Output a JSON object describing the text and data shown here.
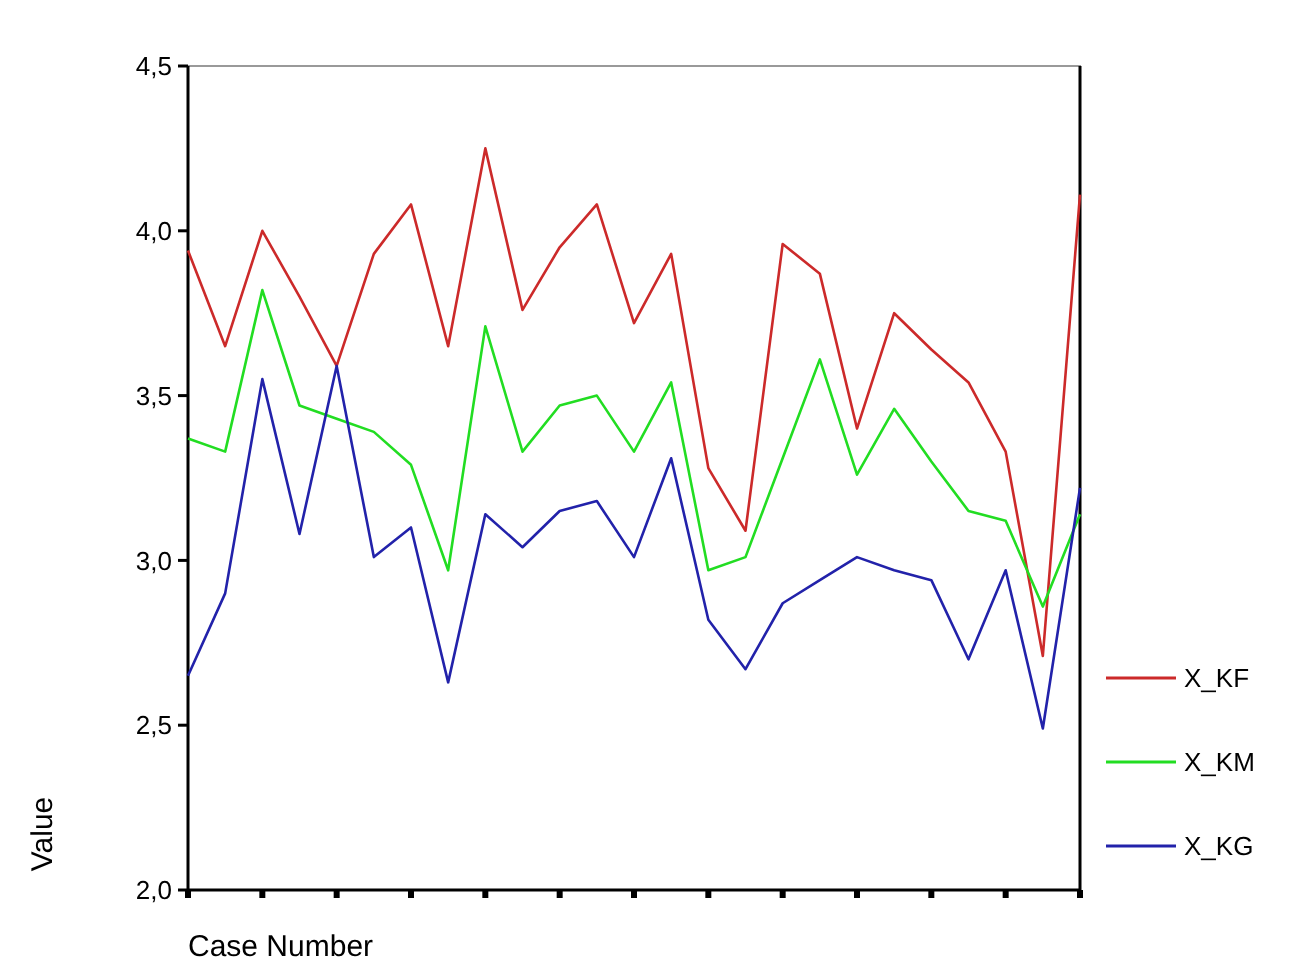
{
  "chart_data": {
    "type": "line",
    "xlabel": "Case Number",
    "ylabel": "Value",
    "categories": [
      null,
      null,
      null,
      null,
      null,
      null,
      null,
      null,
      null,
      null,
      null,
      null,
      null,
      null,
      null,
      null,
      null,
      null,
      null,
      null,
      null,
      null,
      null,
      null,
      null
    ],
    "ylim": [
      2,
      4.5
    ],
    "yticks": [
      {
        "value": 2,
        "label": "2,0"
      },
      {
        "value": 2.5,
        "label": "2,5"
      },
      {
        "value": 3,
        "label": "3,0"
      },
      {
        "value": 3.5,
        "label": "3,5"
      },
      {
        "value": 4,
        "label": "4,0"
      },
      {
        "value": 4.5,
        "label": "4,5"
      }
    ],
    "grid": false,
    "legend": "right",
    "marker": "none",
    "line_style": "solid",
    "series": [
      {
        "name": "X_KF",
        "color": "#cc2a2a",
        "values": [
          3.94,
          3.65,
          4.0,
          3.8,
          3.59,
          3.93,
          4.08,
          3.65,
          4.25,
          3.76,
          3.95,
          4.08,
          3.72,
          3.93,
          3.28,
          3.09,
          3.96,
          3.87,
          3.4,
          3.75,
          3.64,
          3.54,
          3.33,
          2.71,
          4.11
        ]
      },
      {
        "name": "X_KM",
        "color": "#22dd22",
        "values": [
          3.37,
          3.33,
          3.82,
          3.47,
          3.43,
          3.39,
          3.29,
          2.97,
          3.71,
          3.33,
          3.47,
          3.5,
          3.33,
          3.54,
          2.97,
          3.01,
          3.31,
          3.61,
          3.26,
          3.46,
          3.3,
          3.15,
          3.12,
          2.86,
          3.14
        ]
      },
      {
        "name": "X_KG",
        "color": "#2222aa",
        "values": [
          2.65,
          2.9,
          3.55,
          3.08,
          3.59,
          3.01,
          3.1,
          2.63,
          3.14,
          3.04,
          3.15,
          3.18,
          3.01,
          3.31,
          2.82,
          2.67,
          2.87,
          2.94,
          3.01,
          2.97,
          2.94,
          2.7,
          2.97,
          2.49,
          3.22
        ]
      }
    ]
  }
}
